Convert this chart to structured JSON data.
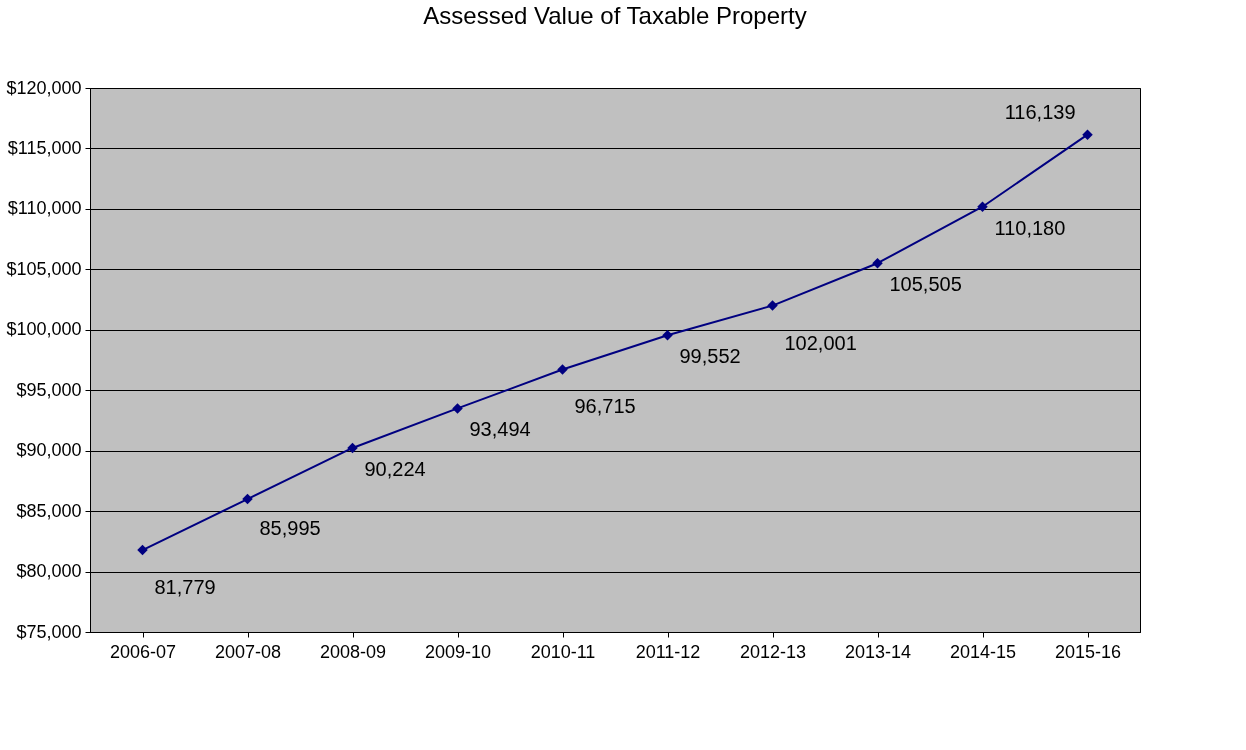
{
  "chart_data": {
    "type": "line",
    "title": "Assessed Value of Taxable Property",
    "categories": [
      "2006-07",
      "2007-08",
      "2008-09",
      "2009-10",
      "2010-11",
      "2011-12",
      "2012-13",
      "2013-14",
      "2014-15",
      "2015-16"
    ],
    "series": [
      {
        "color": "#000080",
        "values": [
          81779,
          85995,
          90224,
          93494,
          96715,
          99552,
          102001,
          105505,
          110180,
          116139
        ],
        "value_labels": [
          "81,779",
          "85,995",
          "90,224",
          "93,494",
          "96,715",
          "99,552",
          "102,001",
          "105,505",
          "110,180",
          "116,139"
        ]
      }
    ],
    "ylim": [
      75000,
      120000
    ],
    "yticks": [
      {
        "value": 75000,
        "label": "$75,000"
      },
      {
        "value": 80000,
        "label": "$80,000"
      },
      {
        "value": 85000,
        "label": "$85,000"
      },
      {
        "value": 90000,
        "label": "$90,000"
      },
      {
        "value": 95000,
        "label": "$95,000"
      },
      {
        "value": 100000,
        "label": "$100,000"
      },
      {
        "value": 105000,
        "label": "$105,000"
      },
      {
        "value": 110000,
        "label": "$110,000"
      },
      {
        "value": 115000,
        "label": "$115,000"
      },
      {
        "value": 120000,
        "label": "$120,000"
      }
    ],
    "grid": "y",
    "marker": "diamond",
    "line_style": "solid"
  }
}
